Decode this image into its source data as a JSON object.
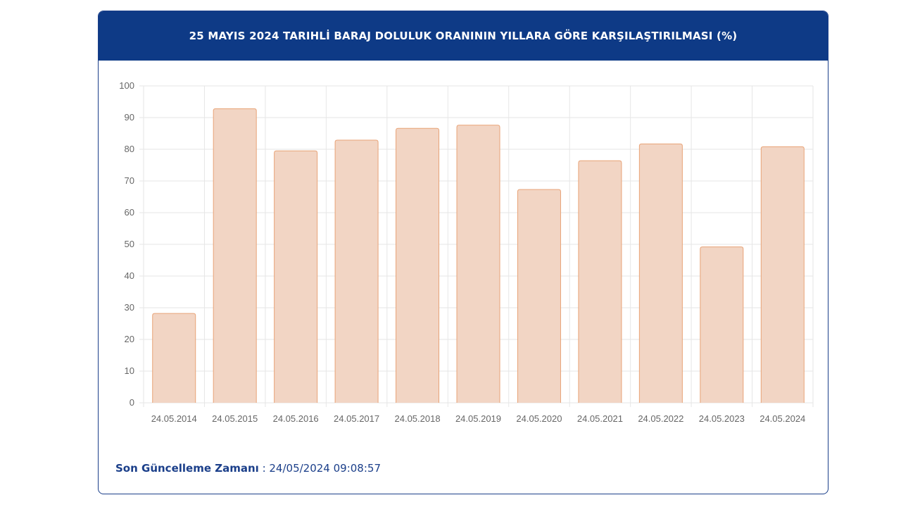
{
  "header": {
    "title": "25 MAYIS 2024 TARIHLİ BARAJ DOLULUK ORANININ YILLARA GÖRE KARŞILAŞTIRILMASI (%)"
  },
  "footer": {
    "label": "Son Güncelleme Zamanı",
    "separator": " : ",
    "value": "24/05/2024 09:08:57"
  },
  "colors": {
    "header_bg": "#0e3a86",
    "bar_fill": "#f2d5c4",
    "bar_stroke": "#e8a377",
    "grid": "#e6e6e6",
    "text_accent": "#1b3f8a"
  },
  "chart_data": {
    "type": "bar",
    "title": "25 MAYIS 2024 TARIHLİ BARAJ DOLULUK ORANININ YILLARA GÖRE KARŞILAŞTIRILMASI (%)",
    "categories": [
      "24.05.2014",
      "24.05.2015",
      "24.05.2016",
      "24.05.2017",
      "24.05.2018",
      "24.05.2019",
      "24.05.2020",
      "24.05.2021",
      "24.05.2022",
      "24.05.2023",
      "24.05.2024"
    ],
    "values": [
      28.2,
      92.8,
      79.5,
      82.9,
      86.6,
      87.6,
      67.3,
      76.4,
      81.7,
      49.2,
      80.8
    ],
    "yticks": [
      "0",
      "10",
      "20",
      "30",
      "40",
      "50",
      "60",
      "70",
      "80",
      "90",
      "100"
    ],
    "ylim": [
      0,
      100
    ],
    "xlabel": "",
    "ylabel": "",
    "grid": true,
    "legend": "none"
  }
}
